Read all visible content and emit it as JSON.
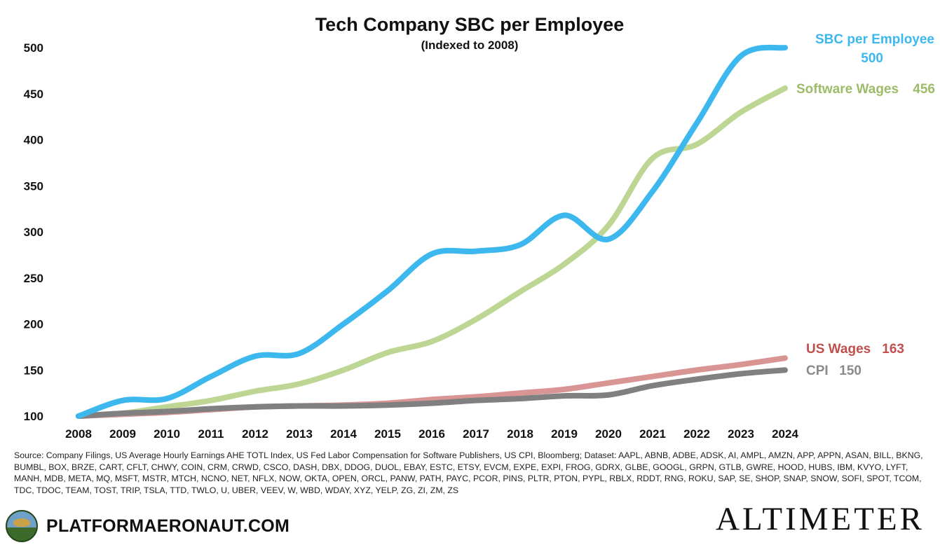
{
  "chart_data": {
    "type": "line",
    "title": "Tech Company SBC per Employee",
    "subtitle": "(Indexed to 2008)",
    "xlabel": "",
    "ylabel": "",
    "ylim": [
      100,
      500
    ],
    "yticks": [
      "100",
      "150",
      "200",
      "250",
      "300",
      "350",
      "400",
      "450",
      "500"
    ],
    "categories": [
      "2008",
      "2009",
      "2010",
      "2011",
      "2012",
      "2013",
      "2014",
      "2015",
      "2016",
      "2017",
      "2018",
      "2019",
      "2020",
      "2021",
      "2022",
      "2023",
      "2024"
    ],
    "grid": false,
    "series": [
      {
        "name": "SBC per Employee",
        "end_label": "500",
        "color": "#3db8ee",
        "values": [
          100,
          117,
          119,
          143,
          165,
          168,
          200,
          236,
          276,
          279,
          286,
          318,
          292,
          344,
          418,
          491,
          500
        ]
      },
      {
        "name": "Software Wages",
        "end_label": "456",
        "color": "#bdd694",
        "values": [
          100,
          103,
          110,
          117,
          127,
          135,
          150,
          169,
          181,
          205,
          235,
          265,
          307,
          380,
          395,
          430,
          456
        ]
      },
      {
        "name": "US Wages",
        "end_label": "163",
        "color": "#d99494",
        "values": [
          100,
          102,
          104,
          107,
          110,
          111,
          112,
          114,
          118,
          121,
          125,
          129,
          136,
          143,
          150,
          156,
          163
        ]
      },
      {
        "name": "CPI",
        "end_label": "150",
        "color": "#808080",
        "values": [
          100,
          103,
          105,
          108,
          110,
          111,
          111,
          112,
          114,
          117,
          119,
          122,
          123,
          133,
          140,
          146,
          150
        ]
      }
    ],
    "legend": [
      {
        "name": "SBC per Employee",
        "value": "500",
        "color": "#3db8ee"
      },
      {
        "name": "Software Wages",
        "value": "456",
        "color": "#9dbb68"
      },
      {
        "name": "US Wages",
        "value": "163",
        "color": "#c0504d"
      },
      {
        "name": "CPI",
        "value": "150",
        "color": "#8a8a8a"
      }
    ]
  },
  "source_text": "Source: Company Filings, US Average Hourly Earnings AHE TOTL Index, US Fed Labor Compensation for Software Publishers, US CPI, Bloomberg; Dataset: AAPL, ABNB, ADBE, ADSK, AI, AMPL, AMZN, APP, APPN, ASAN, BILL, BKNG, BUMBL, BOX, BRZE, CART, CFLT, CHWY, COIN, CRM, CRWD, CSCO, DASH, DBX, DDOG, DUOL, EBAY, ESTC, ETSY, EVCM, EXPE, EXPI, FROG, GDRX, GLBE, GOOGL, GRPN, GTLB, GWRE, HOOD, HUBS, IBM, KVYO, LYFT, MANH, MDB, META, MQ, MSFT, MSTR, MTCH, NCNO, NET, NFLX, NOW, OKTA, OPEN, ORCL, PANW, PATH, PAYC, PCOR, PINS, PLTR, PTON, PYPL, RBLX, RDDT, RNG, ROKU, SAP, SE, SHOP, SNAP, SNOW, SOFI, SPOT, TCOM, TDC, TDOC, TEAM, TOST, TRIP, TSLA, TTD, TWLO, U, UBER, VEEV, W, WBD, WDAY, XYZ, YELP, ZG, ZI, ZM, ZS",
  "footer": {
    "site": "PLATFORMAERONAUT.COM",
    "brand": "ALTIMETER"
  }
}
